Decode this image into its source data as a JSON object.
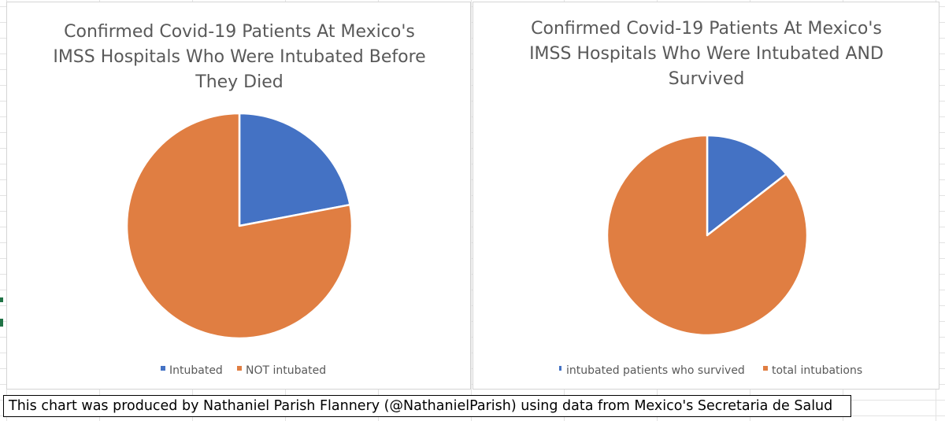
{
  "colors": {
    "blue": "#4472C4",
    "orange": "#E07E42",
    "title": "#595959"
  },
  "chart_data": [
    {
      "type": "pie",
      "title_lines": [
        "Confirmed Covid-19 Patients At Mexico's",
        "IMSS Hospitals Who Were Intubated Before",
        "They Died"
      ],
      "categories": [
        "Intubated",
        "NOT intubated"
      ],
      "values": [
        22,
        78
      ],
      "colors": [
        "#4472C4",
        "#E07E42"
      ],
      "legend_position": "bottom"
    },
    {
      "type": "pie",
      "title_lines": [
        "Confirmed Covid-19 Patients At Mexico's",
        "IMSS Hospitals Who Were Intubated AND",
        "Survived"
      ],
      "categories": [
        "intubated patients who survived",
        "total intubations"
      ],
      "values": [
        14.5,
        85.5
      ],
      "colors": [
        "#4472C4",
        "#E07E42"
      ],
      "legend_position": "bottom"
    }
  ],
  "footer": {
    "text": "This chart was produced by Nathaniel Parish Flannery (@NathanielParish) using data from Mexico's Secretaria de Salud"
  }
}
